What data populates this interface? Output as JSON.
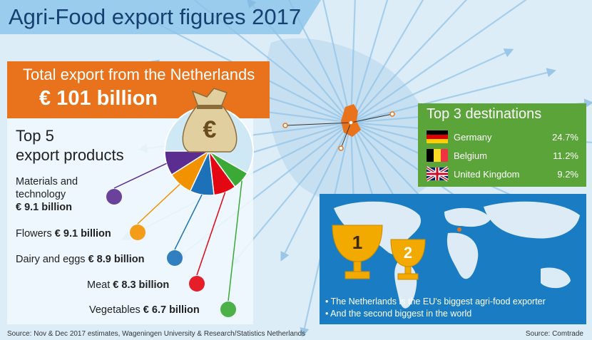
{
  "header": {
    "title": "Agri-Food export figures 2017"
  },
  "total": {
    "heading": "Total export from the Netherlands",
    "value": 101,
    "value_label": "€ 101 billion"
  },
  "products": {
    "heading": [
      "Top 5",
      "export products"
    ],
    "bag_symbol": "€",
    "rest_color": "#cfe8f5",
    "items": [
      {
        "name": "Materials and technology",
        "value": 9.1,
        "value_label": "€ 9.1 billion",
        "color": "#5b2d91"
      },
      {
        "name": "Flowers",
        "value": 9.1,
        "value_label": "€ 9.1 billion",
        "color": "#f39200"
      },
      {
        "name": "Dairy and eggs",
        "value": 8.9,
        "value_label": "€ 8.9 billion",
        "color": "#1d71b8"
      },
      {
        "name": "Meat",
        "value": 8.3,
        "value_label": "€ 8.3 billion",
        "color": "#e30613"
      },
      {
        "name": "Vegetables",
        "value": 6.7,
        "value_label": "€ 6.7 billion",
        "color": "#3aa935"
      }
    ]
  },
  "destinations": {
    "heading": "Top 3 destinations",
    "rows": [
      {
        "country": "Germany",
        "share": "24.7%"
      },
      {
        "country": "Belgium",
        "share": "11.2%"
      },
      {
        "country": "United Kingdom",
        "share": "9.2%"
      }
    ]
  },
  "ranking": {
    "trophies": [
      "1",
      "2"
    ],
    "bullets": [
      "The Netherlands is the EU's biggest agri-food exporter",
      "And the second biggest in the world"
    ]
  },
  "sources": {
    "left": "Source: Nov & Dec 2017 estimates, Wageningen University & Research/Statistics Netherlands",
    "right": "Source: Comtrade"
  }
}
